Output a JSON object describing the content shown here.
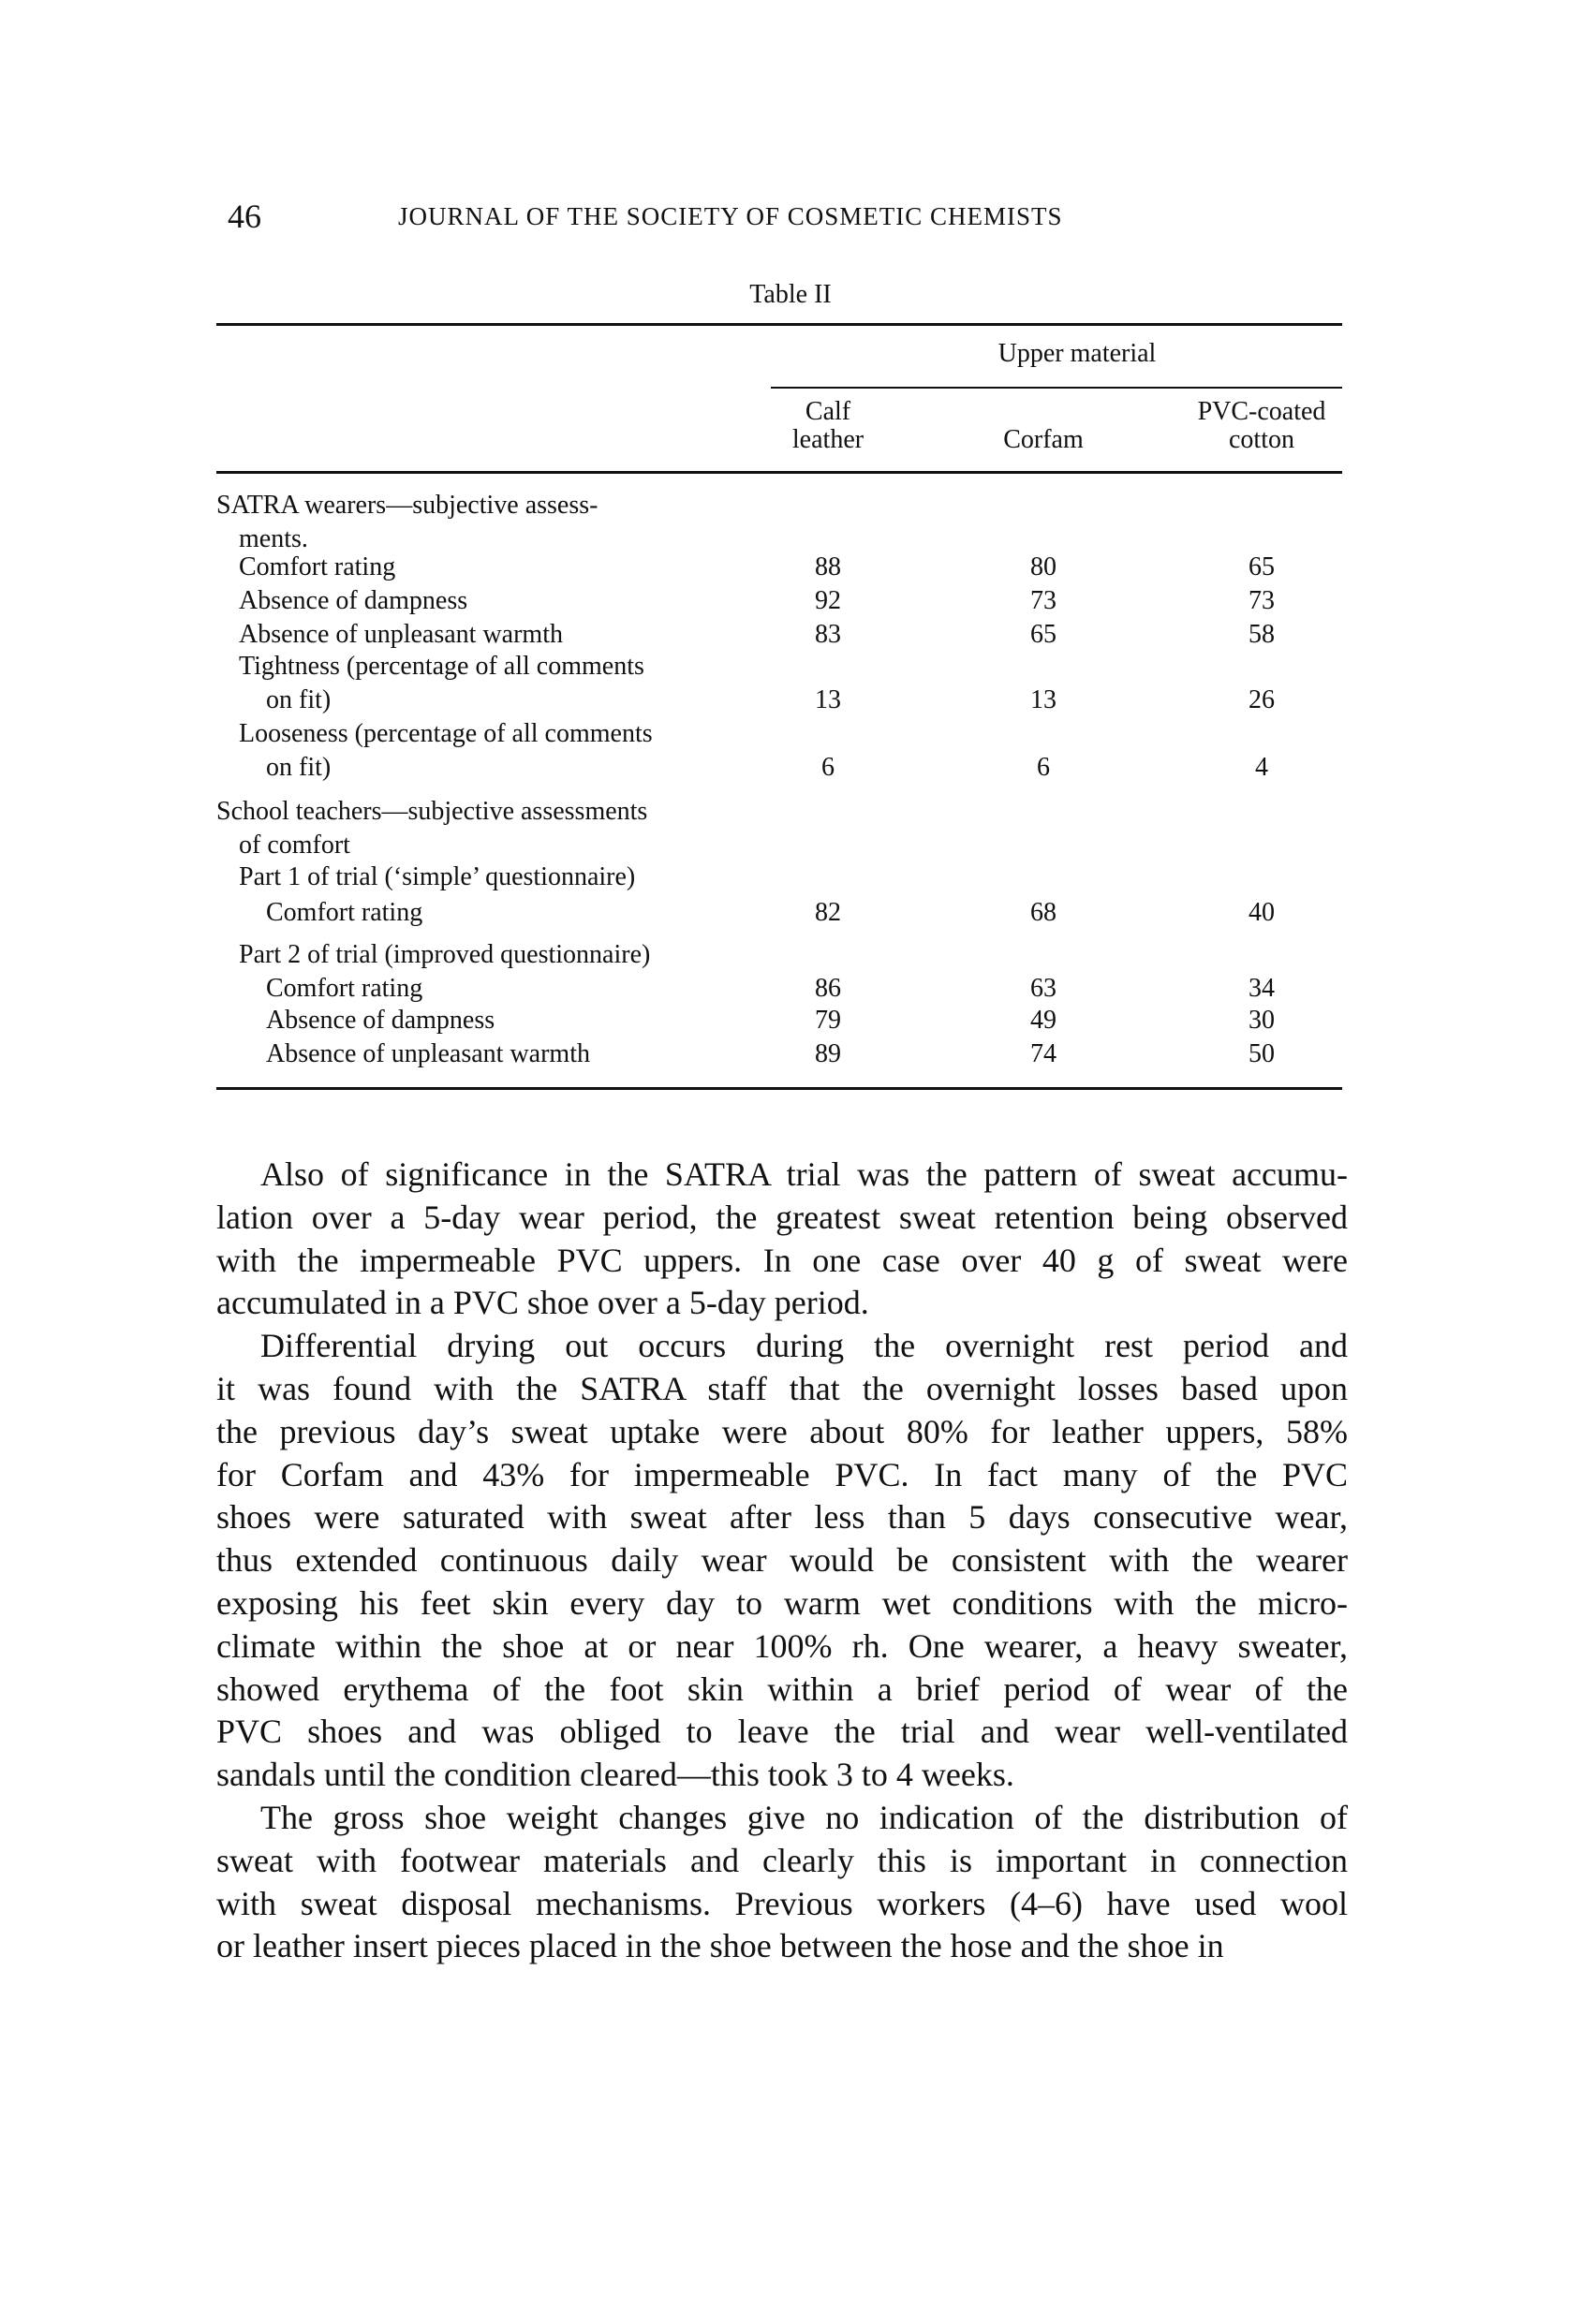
{
  "header": {
    "page_number": "46",
    "journal": "JOURNAL OF THE SOCIETY OF COSMETIC CHEMISTS"
  },
  "table": {
    "caption": "Table II",
    "group_header": "Upper material",
    "columns": [
      {
        "line1": "Calf",
        "line2": "leather"
      },
      {
        "line1": "",
        "line2": "Corfam"
      },
      {
        "line1": "PVC-coated",
        "line2": "cotton"
      }
    ],
    "rows": [
      {
        "label": "SATRA  wearers—subjective  assess-"
      },
      {
        "label": "ments."
      },
      {
        "label": "Comfort rating",
        "values": [
          "88",
          "80",
          "65"
        ]
      },
      {
        "label": "Absence of dampness",
        "values": [
          "92",
          "73",
          "73"
        ]
      },
      {
        "label": "Absence of unpleasant warmth",
        "values": [
          "83",
          "65",
          "58"
        ]
      },
      {
        "label": "Tightness (percentage of all comments"
      },
      {
        "label": "on fit)",
        "values": [
          "13",
          "13",
          "26"
        ]
      },
      {
        "label": "Looseness (percentage of all comments"
      },
      {
        "label": "on fit)",
        "values": [
          "6",
          "6",
          "4"
        ]
      },
      {
        "label": "School teachers—subjective assessments"
      },
      {
        "label": "of comfort"
      },
      {
        "label": "Part 1 of trial (‘simple’ questionnaire)"
      },
      {
        "label": "Comfort rating",
        "values": [
          "82",
          "68",
          "40"
        ]
      },
      {
        "label": "Part 2 of trial (improved questionnaire)"
      },
      {
        "label": "Comfort rating",
        "values": [
          "86",
          "63",
          "34"
        ]
      },
      {
        "label": "Absence of dampness",
        "values": [
          "79",
          "49",
          "30"
        ]
      },
      {
        "label": "Absence of unpleasant warmth",
        "values": [
          "89",
          "74",
          "50"
        ]
      }
    ]
  },
  "paragraphs": [
    [
      "Also of significance in the SATRA trial was the pattern of sweat accumu-",
      "lation over a 5-day wear period, the greatest sweat retention being observed",
      "with the impermeable PVC uppers. In one case over 40 g of sweat were",
      "accumulated in a PVC shoe over a 5-day period."
    ],
    [
      "Differential drying out occurs during the overnight rest period and",
      "it was found with the SATRA staff that the overnight losses based upon",
      "the previous day’s sweat uptake were about 80% for leather uppers, 58%",
      "for Corfam and 43% for impermeable PVC. In fact many of the PVC",
      "shoes were saturated with sweat after less than 5 days consecutive wear,",
      "thus extended continuous daily wear would be consistent with the wearer",
      "exposing his feet skin every day to warm wet conditions with the micro-",
      "climate within the shoe at or near 100% rh. One wearer, a heavy sweater,",
      "showed erythema of the foot skin within a brief period of wear of the",
      "PVC shoes and was obliged to leave the trial and wear well-ventilated",
      "sandals until the condition cleared—this took 3 to 4 weeks."
    ],
    [
      "The gross shoe weight changes give no indication of the distribution of",
      "sweat with footwear materials and clearly this is important in connection",
      "with sweat disposal mechanisms. Previous workers (4–6) have used wool",
      "or leather insert pieces placed in the shoe between the hose and the shoe in"
    ]
  ]
}
